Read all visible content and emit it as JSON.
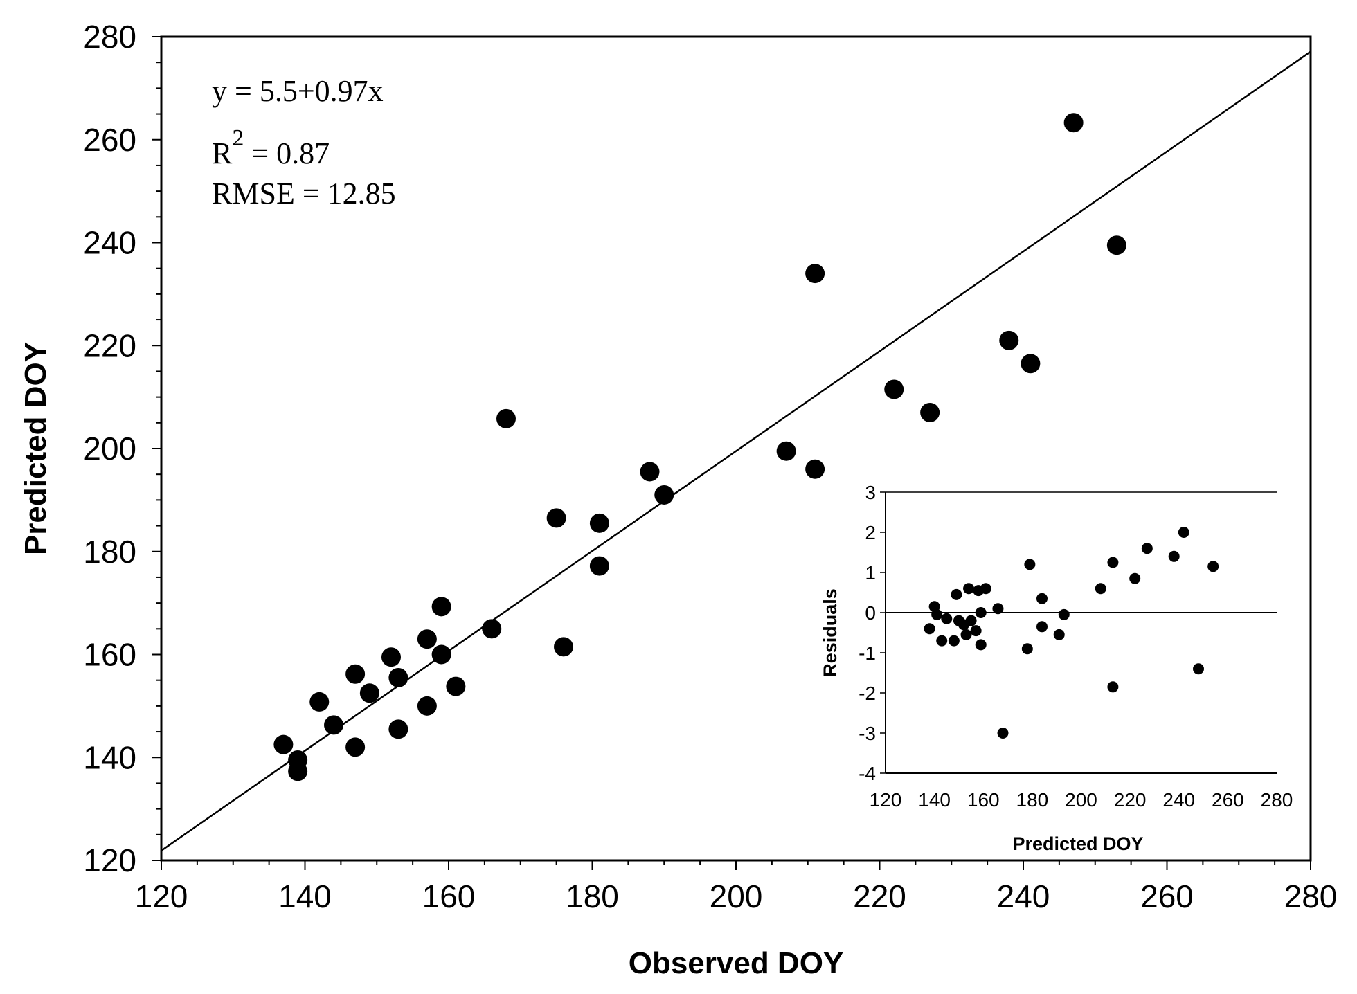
{
  "chart_data": [
    {
      "type": "scatter",
      "name": "main",
      "xlabel": "Observed DOY",
      "ylabel": "Predicted DOY",
      "xlim": [
        120,
        280
      ],
      "ylim": [
        120,
        280
      ],
      "xticks": [
        120,
        140,
        160,
        180,
        200,
        220,
        240,
        260,
        280
      ],
      "yticks": [
        120,
        140,
        160,
        180,
        200,
        220,
        240,
        260,
        280
      ],
      "annotations": {
        "equation": "y = 5.5+0.97x",
        "r2_prefix": "R",
        "r2_sup": "2",
        "r2_suffix": " = 0.87",
        "rmse": "RMSE = 12.85"
      },
      "fit_line": {
        "intercept": 5.5,
        "slope": 0.97
      },
      "points": [
        {
          "x": 137,
          "y": 142.5
        },
        {
          "x": 139,
          "y": 139.5
        },
        {
          "x": 139,
          "y": 137.3
        },
        {
          "x": 142,
          "y": 150.8
        },
        {
          "x": 144,
          "y": 146.3
        },
        {
          "x": 147,
          "y": 156.2
        },
        {
          "x": 147,
          "y": 142.0
        },
        {
          "x": 149,
          "y": 152.5
        },
        {
          "x": 152,
          "y": 159.5
        },
        {
          "x": 153,
          "y": 155.5
        },
        {
          "x": 153,
          "y": 145.5
        },
        {
          "x": 157,
          "y": 163.0
        },
        {
          "x": 157,
          "y": 150.0
        },
        {
          "x": 159,
          "y": 169.3
        },
        {
          "x": 159,
          "y": 160.0
        },
        {
          "x": 161,
          "y": 153.8
        },
        {
          "x": 166,
          "y": 165.0
        },
        {
          "x": 168,
          "y": 205.8
        },
        {
          "x": 175,
          "y": 186.5
        },
        {
          "x": 176,
          "y": 161.5
        },
        {
          "x": 181,
          "y": 185.5
        },
        {
          "x": 181,
          "y": 177.2
        },
        {
          "x": 188,
          "y": 195.5
        },
        {
          "x": 190,
          "y": 191.0
        },
        {
          "x": 207,
          "y": 199.5
        },
        {
          "x": 211,
          "y": 234.0
        },
        {
          "x": 211,
          "y": 196.0
        },
        {
          "x": 222,
          "y": 211.5
        },
        {
          "x": 227,
          "y": 207.0
        },
        {
          "x": 238,
          "y": 221.0
        },
        {
          "x": 241,
          "y": 216.5
        },
        {
          "x": 247,
          "y": 263.3
        },
        {
          "x": 253,
          "y": 239.5
        }
      ]
    },
    {
      "type": "scatter",
      "name": "inset-residuals",
      "xlabel": "Predicted DOY",
      "ylabel": "Residuals",
      "xlim": [
        120,
        280
      ],
      "ylim": [
        -4,
        3
      ],
      "xticks": [
        120,
        140,
        160,
        180,
        200,
        220,
        240,
        260,
        280
      ],
      "yticks": [
        -4,
        -3,
        -2,
        -1,
        0,
        1,
        2,
        3
      ],
      "zero_line": 0,
      "points": [
        {
          "x": 138,
          "y": -0.4
        },
        {
          "x": 140,
          "y": 0.15
        },
        {
          "x": 141,
          "y": -0.05
        },
        {
          "x": 143,
          "y": -0.7
        },
        {
          "x": 145,
          "y": -0.15
        },
        {
          "x": 148,
          "y": -0.7
        },
        {
          "x": 149,
          "y": 0.45
        },
        {
          "x": 150,
          "y": -0.2
        },
        {
          "x": 152,
          "y": -0.3
        },
        {
          "x": 153,
          "y": -0.55
        },
        {
          "x": 154,
          "y": 0.6
        },
        {
          "x": 155,
          "y": -0.2
        },
        {
          "x": 157,
          "y": -0.45
        },
        {
          "x": 158,
          "y": 0.55
        },
        {
          "x": 159,
          "y": 0.0
        },
        {
          "x": 159,
          "y": -0.8
        },
        {
          "x": 161,
          "y": 0.6
        },
        {
          "x": 166,
          "y": 0.1
        },
        {
          "x": 168,
          "y": -3.0
        },
        {
          "x": 178,
          "y": -0.9
        },
        {
          "x": 179,
          "y": 1.2
        },
        {
          "x": 184,
          "y": 0.35
        },
        {
          "x": 184,
          "y": -0.35
        },
        {
          "x": 191,
          "y": -0.55
        },
        {
          "x": 193,
          "y": -0.05
        },
        {
          "x": 208,
          "y": 0.6
        },
        {
          "x": 213,
          "y": 1.25
        },
        {
          "x": 213,
          "y": -1.85
        },
        {
          "x": 222,
          "y": 0.85
        },
        {
          "x": 227,
          "y": 1.6
        },
        {
          "x": 238,
          "y": 1.4
        },
        {
          "x": 242,
          "y": 2.0
        },
        {
          "x": 248,
          "y": -1.4
        },
        {
          "x": 254,
          "y": 1.15
        }
      ]
    }
  ]
}
